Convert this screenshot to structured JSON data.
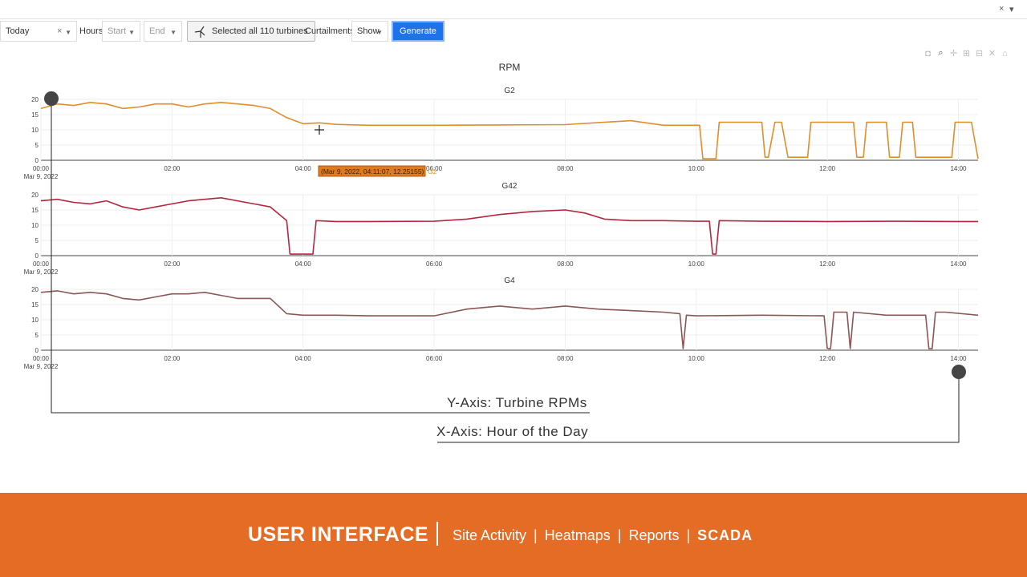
{
  "topbar": {
    "close_glyph": "×",
    "menu_glyph": "▾"
  },
  "toolbar": {
    "date_range": {
      "value": "Today",
      "clear": "×"
    },
    "hours_label": "Hours",
    "start": {
      "placeholder": "Start"
    },
    "end": {
      "placeholder": "End"
    },
    "turbines_button": "Selected all 110 turbines",
    "curtailments_label": "Curtailments",
    "curtailments_select": "Show",
    "generate_button": "Generate"
  },
  "modebar": [
    "camera-icon",
    "zoom-icon",
    "pan-icon",
    "zoom-in-icon",
    "zoom-out-icon",
    "autoscale-icon",
    "reset-axes-icon"
  ],
  "chart_data": {
    "type": "line",
    "title": "RPM",
    "x_tick_labels": [
      "00:00",
      "02:00",
      "04:00",
      "06:00",
      "08:00",
      "10:00",
      "12:00",
      "14:00"
    ],
    "x_date_label": "Mar 9, 2022",
    "x_range_hours": [
      0,
      14.3
    ],
    "y_range": [
      0,
      20
    ],
    "y_ticks": [
      0,
      5,
      10,
      15,
      20
    ],
    "grid": true,
    "panels": [
      {
        "name": "G2",
        "color": "#e08d2c",
        "x_hours": [
          0,
          0.25,
          0.5,
          0.75,
          1,
          1.25,
          1.5,
          1.75,
          2,
          2.25,
          2.5,
          2.75,
          3,
          3.25,
          3.5,
          3.75,
          4,
          4.25,
          4.5,
          5,
          6,
          7,
          8,
          9,
          9.5,
          10.05,
          10.1,
          10.3,
          10.35,
          11,
          11.05,
          11.1,
          11.2,
          11.3,
          11.4,
          11.7,
          11.75,
          12.4,
          12.45,
          12.55,
          12.6,
          12.9,
          12.95,
          13.1,
          13.15,
          13.3,
          13.35,
          13.9,
          13.95,
          14.2,
          14.3
        ],
        "values": [
          17,
          18.5,
          18,
          19,
          18.5,
          17,
          17.5,
          18.5,
          18.5,
          17.5,
          18.5,
          19,
          18.5,
          18,
          17,
          14,
          12,
          12.3,
          11.8,
          11.5,
          11.5,
          11.6,
          11.7,
          13,
          11.5,
          11.5,
          0.5,
          0.5,
          12.5,
          12.5,
          1,
          1,
          12.5,
          12.5,
          1,
          1,
          12.5,
          12.5,
          1,
          1,
          12.5,
          12.5,
          1,
          1,
          12.5,
          12.5,
          1,
          1,
          12.5,
          12.5,
          0.5
        ]
      },
      {
        "name": "G42",
        "color": "#b5253e",
        "x_hours": [
          0,
          0.25,
          0.5,
          0.75,
          1,
          1.25,
          1.5,
          1.75,
          2,
          2.25,
          2.5,
          2.75,
          3,
          3.25,
          3.5,
          3.75,
          3.8,
          3.85,
          4.15,
          4.2,
          4.5,
          5,
          6,
          6.5,
          7,
          7.5,
          8,
          8.3,
          8.6,
          9,
          9.5,
          10,
          10.2,
          10.25,
          10.3,
          10.35,
          11,
          12,
          13,
          14,
          14.3
        ],
        "values": [
          18,
          18.5,
          17.5,
          17,
          18,
          16,
          15,
          16,
          17,
          18,
          18.5,
          19,
          18,
          17,
          16,
          11.5,
          0.5,
          0.5,
          0.5,
          11.5,
          11.2,
          11.2,
          11.3,
          12,
          13.5,
          14.5,
          15,
          14,
          12,
          11.5,
          11.5,
          11.3,
          11.3,
          0.5,
          0.5,
          11.5,
          11.3,
          11.2,
          11.3,
          11.2,
          11.2
        ]
      },
      {
        "name": "G4",
        "color": "#8a5656",
        "x_hours": [
          0,
          0.25,
          0.5,
          0.75,
          1,
          1.25,
          1.5,
          1.75,
          2,
          2.25,
          2.5,
          2.75,
          3,
          3.25,
          3.5,
          3.75,
          4,
          4.5,
          5,
          6,
          6.5,
          7,
          7.5,
          8,
          8.5,
          9,
          9.5,
          9.75,
          9.8,
          9.85,
          10,
          11,
          11.95,
          12,
          12.05,
          12.1,
          12.3,
          12.35,
          12.4,
          12.9,
          13.5,
          13.55,
          13.6,
          13.65,
          13.8,
          14.3
        ],
        "values": [
          19,
          19.5,
          18.5,
          19,
          18.5,
          17,
          16.5,
          17.5,
          18.5,
          18.5,
          19,
          18,
          17,
          17,
          17,
          12,
          11.5,
          11.5,
          11.3,
          11.3,
          13.5,
          14.5,
          13.5,
          14.5,
          13.5,
          13,
          12.5,
          12,
          0.5,
          11.5,
          11.3,
          11.5,
          11.3,
          0.5,
          0.5,
          12.5,
          12.5,
          0.5,
          12.5,
          11.5,
          11.5,
          0.5,
          0.5,
          12.5,
          12.5,
          11.5
        ]
      }
    ],
    "tooltip": {
      "text": "(Mar 9, 2022, 04:11:07, 12.25155)",
      "series": "G2"
    }
  },
  "annotations": {
    "y_axis": "Y-Axis: Turbine RPMs",
    "x_axis": "X-Axis: Hour of the Day"
  },
  "footer": {
    "title": "USER INTERFACE",
    "links": [
      "Site Activity",
      "Heatmaps",
      "Reports"
    ],
    "active": "SCADA",
    "pipe": "|"
  }
}
